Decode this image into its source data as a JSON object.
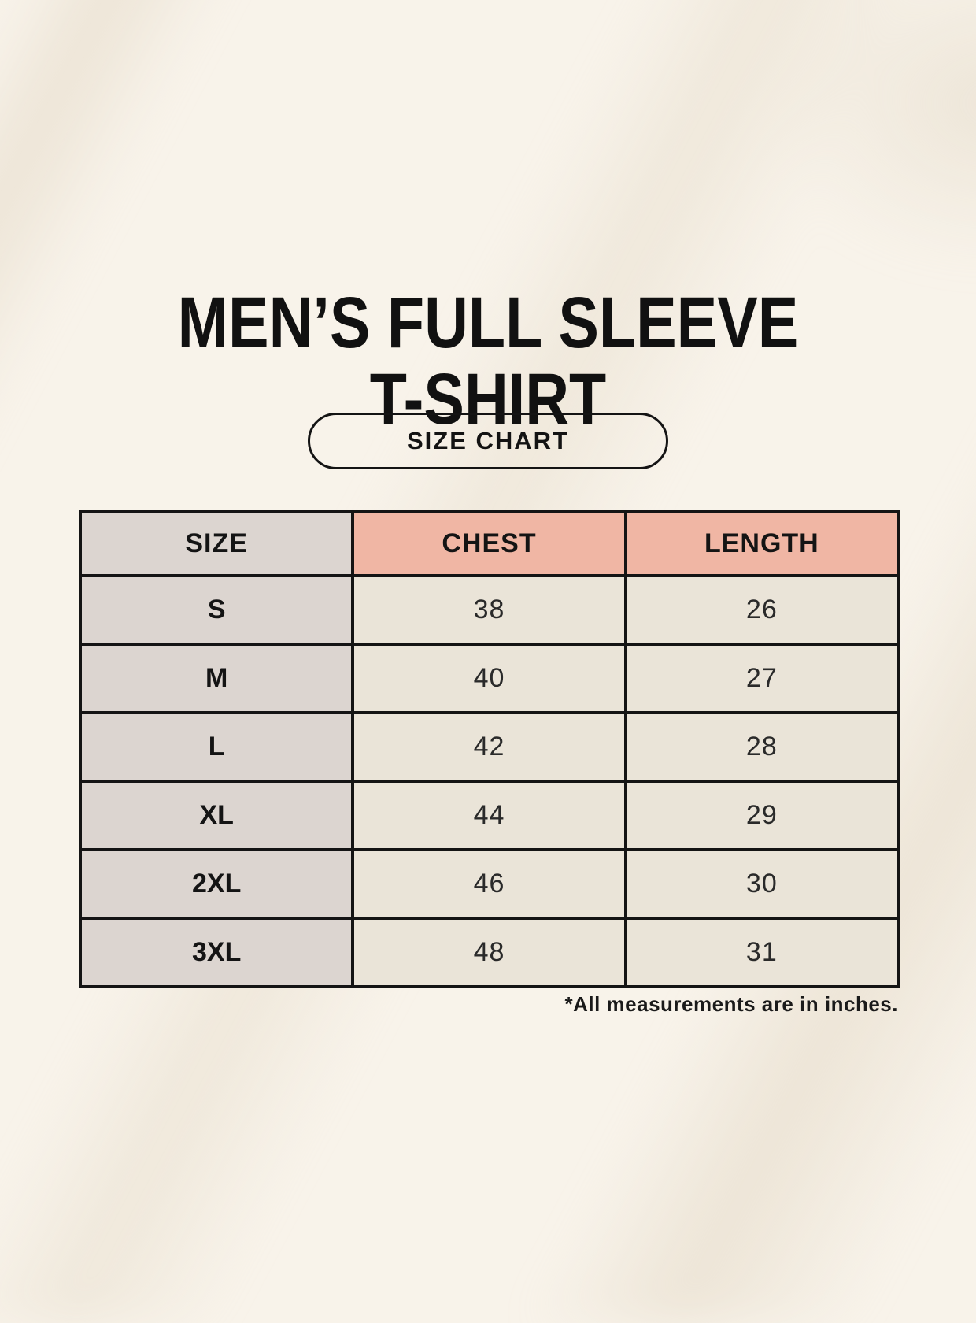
{
  "page": {
    "title_line1": "MEN’S FULL SLEEVE",
    "title_line2": "T-SHIRT",
    "button_label": "SIZE CHART",
    "note": "*All measurements are in inches."
  },
  "colors": {
    "page_background": "#f8f3ea",
    "size_column_background": "#dcd5d0",
    "header_accent_background": "#f0b6a4",
    "data_cell_background": "#eae4d8",
    "table_border": "#141414",
    "text": "#131313"
  },
  "chart_data": {
    "type": "table",
    "title": "MEN’S FULL SLEEVE T-SHIRT — SIZE CHART",
    "columns": [
      "SIZE",
      "CHEST",
      "LENGTH"
    ],
    "units": "inches",
    "rows": [
      {
        "size": "S",
        "chest": 38,
        "length": 26
      },
      {
        "size": "M",
        "chest": 40,
        "length": 27
      },
      {
        "size": "L",
        "chest": 42,
        "length": 28
      },
      {
        "size": "XL",
        "chest": 44,
        "length": 29
      },
      {
        "size": "2XL",
        "chest": 46,
        "length": 30
      },
      {
        "size": "3XL",
        "chest": 48,
        "length": 31
      }
    ]
  }
}
